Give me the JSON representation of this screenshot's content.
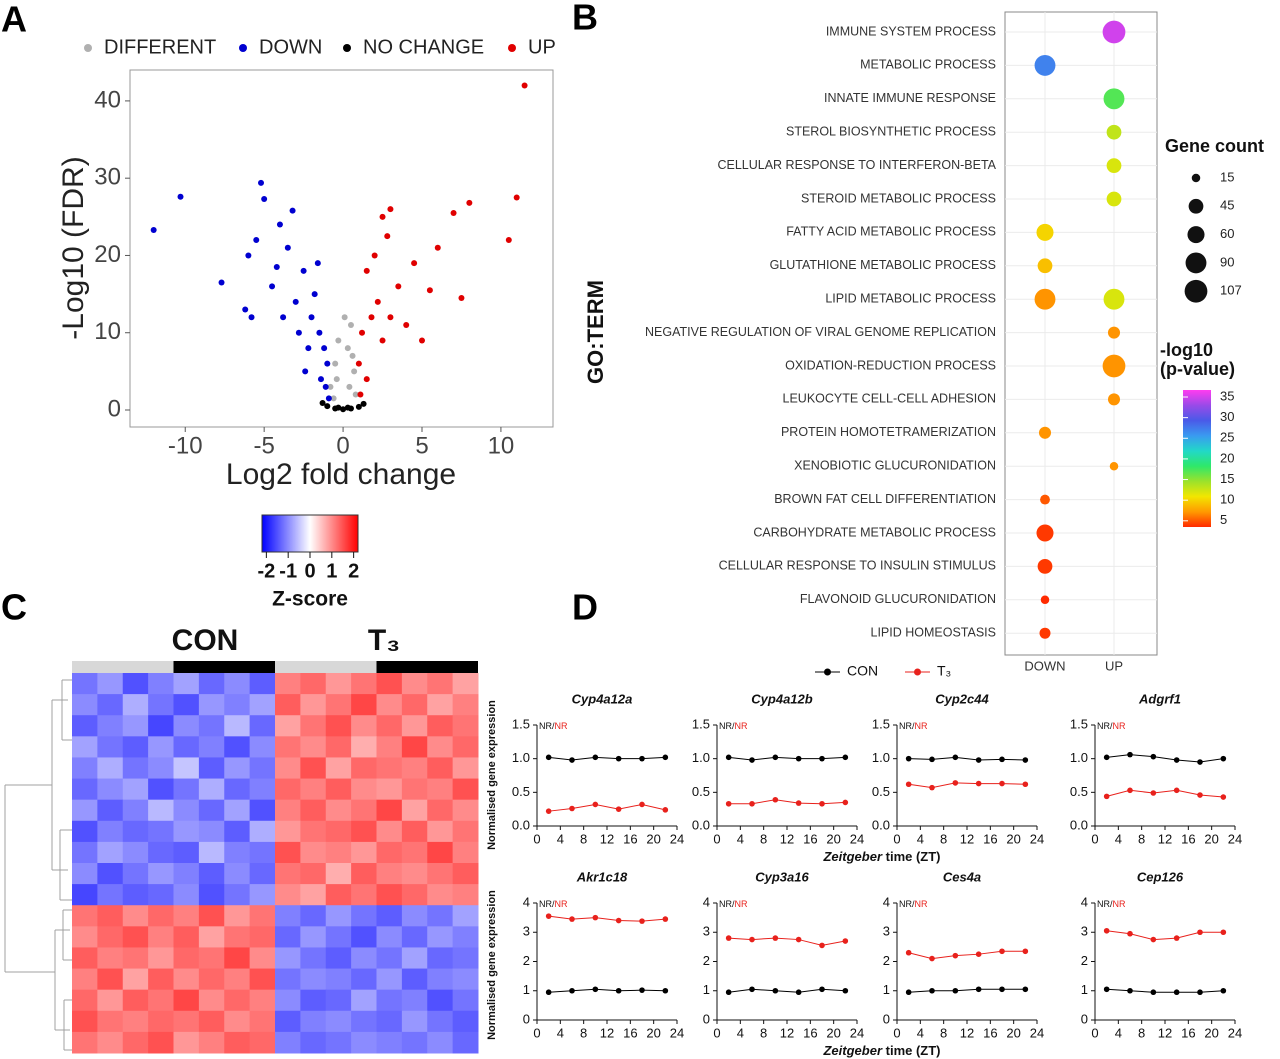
{
  "chart_data": [
    {
      "type": "scatter",
      "label": "A",
      "xlabel": "Log2 fold change",
      "ylabel": "-Log10 (FDR)",
      "xlim": [
        -13.5,
        13.3
      ],
      "ylim": [
        -2.2,
        44
      ],
      "xticks": [
        -10,
        -5,
        0,
        5,
        10
      ],
      "yticks": [
        0,
        10,
        20,
        30,
        40
      ],
      "series": [
        {
          "name": "DIFFERENT",
          "color": "#b0b0b0",
          "x": [
            -0.8,
            -0.5,
            -0.3,
            0.5,
            0.3,
            0.7,
            -0.6,
            0.8,
            0.1,
            -0.4,
            0.4,
            0.6
          ],
          "values": [
            3,
            6,
            9,
            11,
            8,
            5,
            1.5,
            2,
            12,
            4,
            3,
            7
          ]
        },
        {
          "name": "DOWN",
          "color": "#0000d0",
          "x": [
            -12,
            -10.3,
            -7.7,
            -5.2,
            -5,
            -5.5,
            -6,
            -3.2,
            -4,
            -3.5,
            -2.5,
            -4.5,
            -3,
            -2,
            -1.5,
            -1.2,
            -1,
            -2.2,
            -1.8,
            -2.8,
            -6.2,
            -5.8,
            -1.1,
            -0.9,
            -1.4,
            -3.8,
            -2.4,
            -1.6,
            -4.2
          ],
          "values": [
            23.3,
            27.6,
            16.5,
            29.4,
            27.3,
            22,
            20,
            25.8,
            24,
            21,
            18,
            16,
            14,
            12,
            10,
            8,
            6,
            8,
            15,
            10,
            13,
            12,
            3,
            1.5,
            4,
            12,
            5,
            19,
            18.5
          ]
        },
        {
          "name": "NO CHANGE",
          "color": "#000000",
          "x": [
            -1,
            -0.5,
            0,
            0.5,
            1,
            -0.3,
            0.3,
            1.3,
            -1.3
          ],
          "values": [
            0.5,
            0.2,
            0.1,
            0.2,
            0.4,
            0.3,
            0.3,
            0.8,
            0.9
          ]
        },
        {
          "name": "UP",
          "color": "#e00000",
          "x": [
            11.5,
            11,
            10.5,
            8,
            7.5,
            7,
            6,
            5,
            4,
            3,
            2.5,
            2,
            1.5,
            3.5,
            2.2,
            1.2,
            1,
            1.5,
            2.5,
            4.5,
            3,
            1.8,
            1.1,
            5.5,
            2.8
          ],
          "values": [
            42,
            27.5,
            22,
            26.8,
            14.5,
            25.5,
            21,
            9,
            11,
            26,
            25,
            20,
            18,
            16,
            14,
            10,
            6,
            4,
            9,
            19,
            12,
            12,
            2,
            15.5,
            22.5
          ]
        }
      ]
    },
    {
      "type": "heatmap",
      "label": "C",
      "groups": [
        "CON",
        "T₃"
      ],
      "colorbar_title": "Z-score",
      "clim": [
        -2.2,
        2.2
      ],
      "cticks": [
        -2,
        -1,
        0,
        1,
        2
      ],
      "colors": [
        "#0000ff",
        "#ffffff",
        "#ff0000"
      ],
      "values": [
        [
          -1.2,
          -0.9,
          -1.5,
          -1.1,
          -0.8,
          -1.3,
          -1.0,
          -1.4,
          1.1,
          1.3,
          0.9,
          1.2,
          1.5,
          1.0,
          1.2,
          0.8
        ],
        [
          -1.0,
          -1.3,
          -0.7,
          -1.2,
          -1.5,
          -0.9,
          -1.1,
          -0.8,
          1.4,
          0.9,
          1.2,
          1.6,
          1.0,
          1.3,
          0.8,
          1.1
        ],
        [
          -1.4,
          -1.1,
          -0.9,
          -1.6,
          -1.0,
          -1.2,
          -0.6,
          -1.3,
          0.8,
          1.2,
          1.5,
          1.0,
          1.3,
          0.9,
          1.4,
          1.2
        ],
        [
          -0.8,
          -1.2,
          -1.4,
          -0.9,
          -1.3,
          -1.1,
          -1.5,
          -1.0,
          1.2,
          1.0,
          1.3,
          0.7,
          1.1,
          1.6,
          1.0,
          1.3
        ],
        [
          -1.1,
          -0.7,
          -1.2,
          -1.0,
          -0.5,
          -1.4,
          -0.9,
          -1.2,
          1.0,
          1.5,
          0.8,
          1.3,
          1.2,
          1.1,
          1.4,
          0.9
        ],
        [
          -1.3,
          -1.0,
          -0.8,
          -1.5,
          -1.2,
          -0.7,
          -1.3,
          -1.1,
          1.3,
          1.1,
          1.4,
          1.0,
          0.9,
          1.2,
          1.1,
          1.5
        ],
        [
          -0.9,
          -1.4,
          -1.1,
          -0.6,
          -1.0,
          -1.3,
          -0.8,
          -1.5,
          1.1,
          1.4,
          1.0,
          1.2,
          1.6,
          0.8,
          1.3,
          1.0
        ],
        [
          -1.5,
          -1.1,
          -1.3,
          -1.2,
          -0.9,
          -1.0,
          -1.4,
          -0.7,
          0.9,
          1.2,
          1.3,
          1.5,
          1.0,
          1.4,
          0.9,
          1.2
        ],
        [
          -1.2,
          -0.8,
          -1.0,
          -1.3,
          -1.4,
          -0.6,
          -1.1,
          -1.2,
          1.5,
          1.0,
          1.1,
          0.9,
          1.3,
          1.2,
          1.6,
          1.1
        ],
        [
          -1.0,
          -1.5,
          -1.2,
          -0.9,
          -1.1,
          -1.4,
          -1.0,
          -1.3,
          1.2,
          1.3,
          0.7,
          1.4,
          1.1,
          1.0,
          1.2,
          1.4
        ],
        [
          -1.6,
          -1.2,
          -1.4,
          -1.3,
          -1.0,
          -1.5,
          -1.2,
          -0.9,
          1.0,
          0.8,
          1.4,
          1.2,
          1.5,
          1.3,
          1.0,
          1.1
        ],
        [
          1.2,
          1.4,
          1.0,
          1.3,
          1.1,
          1.5,
          0.9,
          1.2,
          -1.1,
          -1.3,
          -0.9,
          -1.2,
          -1.4,
          -1.0,
          -1.2,
          -0.8
        ],
        [
          1.0,
          1.3,
          1.5,
          1.1,
          1.4,
          0.8,
          1.2,
          1.3,
          -1.3,
          -0.9,
          -1.2,
          -1.5,
          -1.0,
          -1.3,
          -0.9,
          -1.1
        ],
        [
          1.4,
          1.1,
          1.2,
          0.9,
          1.3,
          1.2,
          1.6,
          1.0,
          -0.9,
          -1.2,
          -1.4,
          -1.0,
          -1.2,
          -0.8,
          -1.3,
          -1.2
        ],
        [
          1.1,
          1.5,
          0.8,
          1.4,
          1.0,
          1.3,
          1.1,
          1.5,
          -1.2,
          -1.0,
          -1.1,
          -1.3,
          -0.9,
          -1.4,
          -1.1,
          -1.0
        ],
        [
          1.3,
          0.9,
          1.4,
          1.2,
          1.6,
          1.0,
          1.3,
          1.1,
          -1.0,
          -1.4,
          -1.3,
          -0.8,
          -1.2,
          -1.1,
          -1.5,
          -1.2
        ],
        [
          1.5,
          1.2,
          1.1,
          1.3,
          1.2,
          1.4,
          1.0,
          1.2,
          -1.4,
          -1.1,
          -1.0,
          -1.2,
          -1.3,
          -0.9,
          -1.2,
          -1.4
        ],
        [
          1.2,
          1.0,
          1.3,
          1.5,
          0.9,
          1.1,
          1.4,
          1.3,
          -1.1,
          -1.3,
          -1.2,
          -1.0,
          -1.1,
          -1.2,
          -1.0,
          -1.3
        ]
      ]
    },
    {
      "type": "bubble",
      "label": "B",
      "ylabel": "GO:TERM",
      "terms": [
        "IMMUNE SYSTEM PROCESS",
        "METABOLIC PROCESS",
        "INNATE IMMUNE RESPONSE",
        "STEROL BIOSYNTHETIC PROCESS",
        "CELLULAR RESPONSE TO INTERFERON-BETA",
        "STEROID METABOLIC PROCESS",
        "FATTY ACID METABOLIC PROCESS",
        "GLUTATHIONE METABOLIC PROCESS",
        "LIPID METABOLIC PROCESS",
        "NEGATIVE REGULATION OF VIRAL GENOME REPLICATION",
        "OXIDATION-REDUCTION PROCESS",
        "LEUKOCYTE CELL-CELL ADHESION",
        "PROTEIN HOMOTETRAMERIZATION",
        "XENOBIOTIC GLUCURONIDATION",
        "BROWN FAT CELL DIFFERENTIATION",
        "CARBOHYDRATE METABOLIC PROCESS",
        "CELLULAR RESPONSE TO INSULIN STIMULUS",
        "FLAVONOID GLUCURONIDATION",
        "LIPID HOMEOSTASIS"
      ],
      "columns": [
        {
          "name": "DOWN",
          "values": [
            null,
            27,
            null,
            null,
            null,
            null,
            10,
            9,
            7,
            null,
            null,
            null,
            7,
            null,
            5,
            4,
            4,
            3,
            4
          ],
          "sizes": [
            null,
            90,
            null,
            null,
            null,
            null,
            60,
            45,
            90,
            null,
            null,
            null,
            30,
            null,
            20,
            60,
            45,
            15,
            25
          ]
        },
        {
          "name": "UP",
          "values": [
            35,
            null,
            17,
            13,
            12,
            12,
            null,
            null,
            12,
            7,
            7,
            7,
            null,
            7,
            null,
            null,
            null,
            null,
            null
          ],
          "sizes": [
            107,
            null,
            90,
            45,
            45,
            45,
            null,
            null,
            90,
            30,
            107,
            30,
            null,
            15,
            null,
            null,
            null,
            null,
            null
          ]
        }
      ],
      "size_title": "Gene count",
      "size_legend": [
        15,
        45,
        60,
        90,
        107
      ],
      "color_title": [
        "-log10",
        "(p-value)"
      ],
      "clim": [
        3.5,
        36.7
      ],
      "cticks": [
        5,
        10,
        15,
        20,
        25,
        30,
        35
      ],
      "colors": [
        "#ff2a00",
        "#ff9a00",
        "#f2e600",
        "#9be22b",
        "#2ee86a",
        "#22d8c8",
        "#3a9af0",
        "#4a5ae8",
        "#9a4ae8",
        "#ff3cf0"
      ]
    },
    {
      "type": "line",
      "label": "D",
      "legend": [
        {
          "name": "CON",
          "color": "#000000"
        },
        {
          "name": "T₃",
          "color": "#e8211c"
        }
      ],
      "ylabel": "Normalised gene expression",
      "xlabel": [
        "Zeitgeber",
        "time (ZT)"
      ],
      "annotation": [
        "NR/",
        "NR"
      ],
      "x": [
        2,
        6,
        10,
        14,
        18,
        22
      ],
      "xlim": [
        0,
        24
      ],
      "xticks": [
        0,
        4,
        8,
        12,
        16,
        20,
        24
      ],
      "rows": [
        {
          "ylim": [
            0,
            1.5
          ],
          "yticks": [
            {
              "value": 0,
              "label": "0.0"
            },
            {
              "value": 0.5,
              "label": "0.5"
            },
            {
              "value": 1,
              "label": "1.0"
            },
            {
              "value": 1.5,
              "label": "1.5"
            }
          ],
          "panels": [
            {
              "title": "Cyp4a12a",
              "values": [
                [
                  1.02,
                  0.98,
                  1.02,
                  1.0,
                  1.0,
                  1.02
                ],
                [
                  0.22,
                  0.26,
                  0.32,
                  0.25,
                  0.32,
                  0.24
                ]
              ]
            },
            {
              "title": "Cyp4a12b",
              "values": [
                [
                  1.02,
                  0.98,
                  1.02,
                  1.0,
                  1.0,
                  1.02
                ],
                [
                  0.33,
                  0.33,
                  0.39,
                  0.34,
                  0.33,
                  0.35
                ]
              ]
            },
            {
              "title": "Cyp2c44",
              "values": [
                [
                  1.0,
                  0.99,
                  1.02,
                  0.98,
                  0.99,
                  0.98
                ],
                [
                  0.62,
                  0.57,
                  0.64,
                  0.63,
                  0.63,
                  0.62
                ]
              ]
            },
            {
              "title": "Adgrf1",
              "values": [
                [
                  1.02,
                  1.06,
                  1.03,
                  0.98,
                  0.95,
                  1.0
                ],
                [
                  0.44,
                  0.53,
                  0.49,
                  0.53,
                  0.46,
                  0.43
                ]
              ]
            }
          ]
        },
        {
          "ylim": [
            0,
            4
          ],
          "yticks": [
            0,
            1,
            2,
            3,
            4
          ],
          "panels": [
            {
              "title": "Akr1c18",
              "values": [
                [
                  0.95,
                  1.0,
                  1.05,
                  1.0,
                  1.02,
                  1.0
                ],
                [
                  3.55,
                  3.45,
                  3.5,
                  3.4,
                  3.38,
                  3.45
                ]
              ]
            },
            {
              "title": "Cyp3a16",
              "values": [
                [
                  0.95,
                  1.05,
                  1.0,
                  0.95,
                  1.05,
                  1.0
                ],
                [
                  2.8,
                  2.75,
                  2.8,
                  2.75,
                  2.55,
                  2.7
                ]
              ]
            },
            {
              "title": "Ces4a",
              "values": [
                [
                  0.95,
                  1.0,
                  1.0,
                  1.05,
                  1.05,
                  1.05
                ],
                [
                  2.3,
                  2.1,
                  2.2,
                  2.25,
                  2.35,
                  2.35
                ]
              ]
            },
            {
              "title": "Cep126",
              "values": [
                [
                  1.05,
                  1.0,
                  0.95,
                  0.95,
                  0.95,
                  1.0
                ],
                [
                  3.05,
                  2.95,
                  2.75,
                  2.8,
                  3.0,
                  3.0
                ]
              ]
            }
          ]
        }
      ]
    }
  ]
}
